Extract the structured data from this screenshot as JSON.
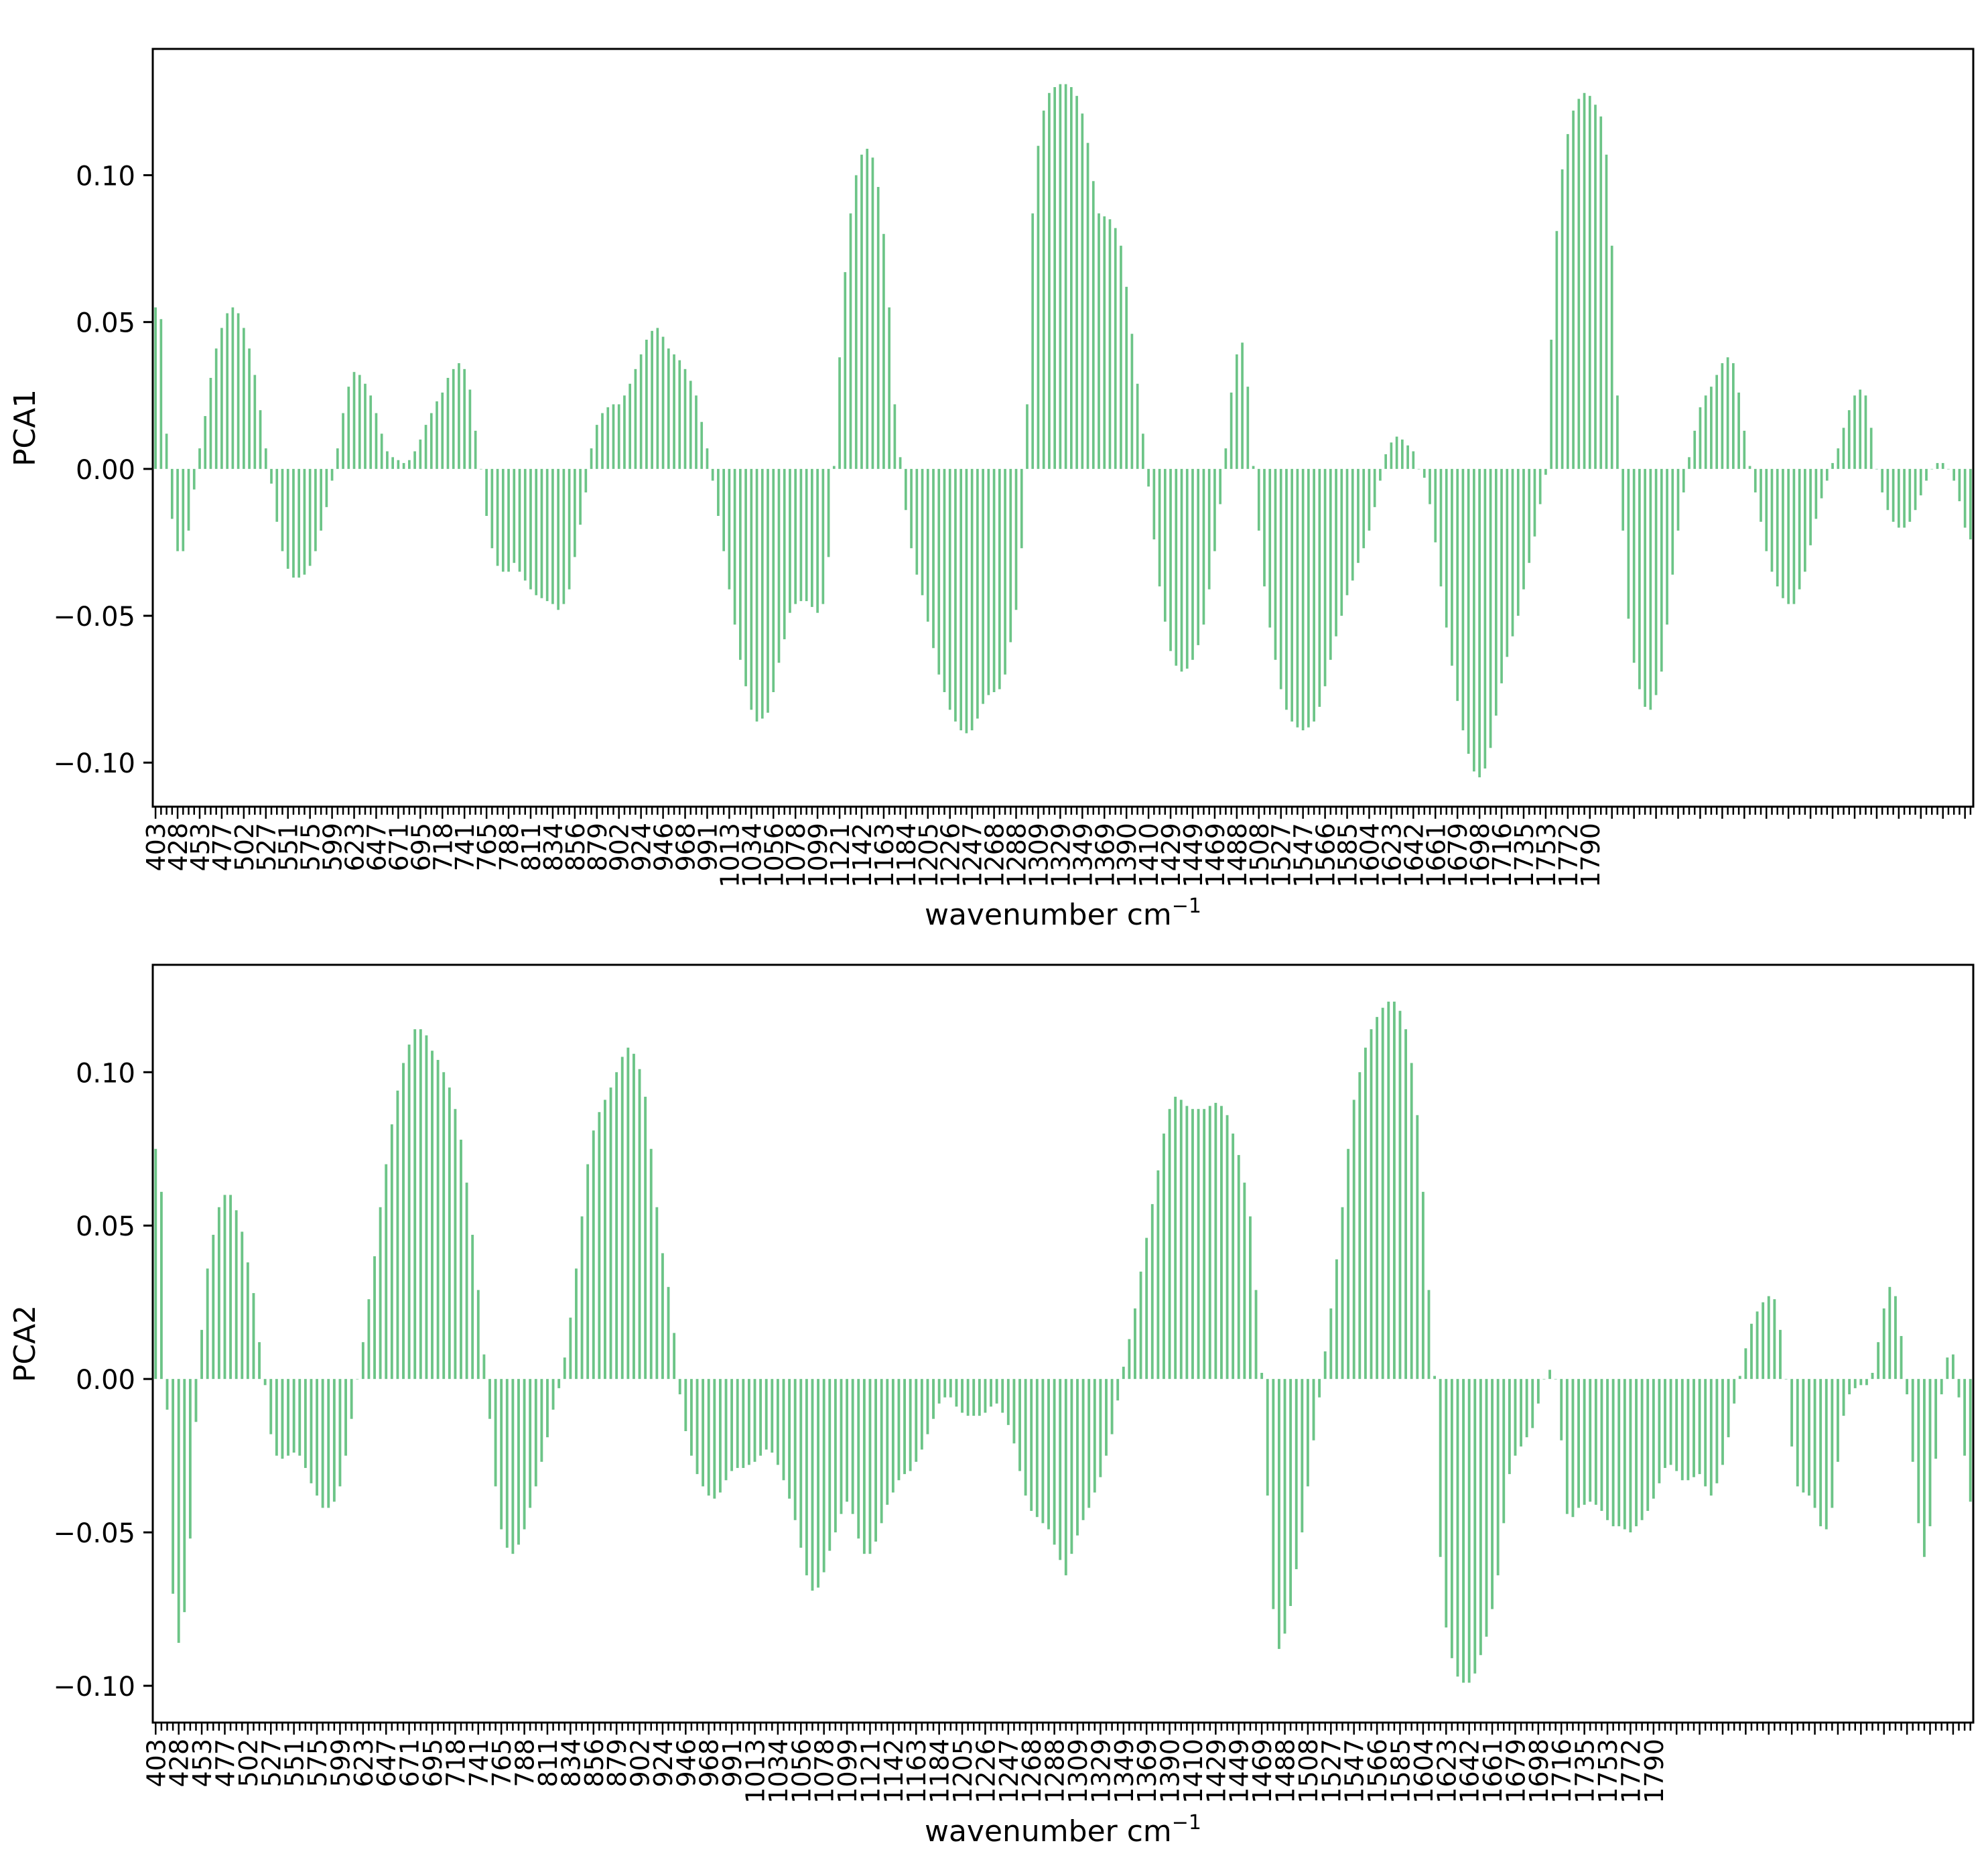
{
  "colors": {
    "bar": "#6cc487",
    "axes": "#000000",
    "background": "#ffffff"
  },
  "chart_data": [
    {
      "type": "bar",
      "panel": "top",
      "xlabel": "wavenumber cm",
      "xlabel_superscript": "−1",
      "ylabel": "PCA1",
      "ylim": [
        -0.115,
        0.143
      ],
      "yticks": [
        -0.1,
        -0.05,
        0.0,
        0.05,
        0.1
      ],
      "ytick_labels": [
        "−0.10",
        "−0.05",
        "0.00",
        "0.05",
        "0.10"
      ],
      "x_tick_labels": [
        "403",
        "428",
        "453",
        "477",
        "502",
        "527",
        "551",
        "575",
        "599",
        "623",
        "647",
        "671",
        "695",
        "718",
        "741",
        "765",
        "788",
        "811",
        "834",
        "856",
        "879",
        "902",
        "924",
        "946",
        "968",
        "991",
        "1013",
        "1034",
        "1056",
        "1078",
        "1099",
        "1121",
        "1142",
        "1163",
        "1184",
        "1205",
        "1226",
        "1247",
        "1268",
        "1288",
        "1309",
        "1329",
        "1349",
        "1369",
        "1390",
        "1410",
        "1429",
        "1449",
        "1469",
        "1488",
        "1508",
        "1527",
        "1547",
        "1566",
        "1585",
        "1604",
        "1623",
        "1642",
        "1661",
        "1679",
        "1698",
        "1716",
        "1735",
        "1753",
        "1772",
        "1790"
      ],
      "values": [
        0.055,
        0.051,
        0.012,
        -0.017,
        -0.028,
        -0.028,
        -0.021,
        -0.007,
        0.007,
        0.018,
        0.031,
        0.041,
        0.048,
        0.053,
        0.055,
        0.053,
        0.048,
        0.041,
        0.032,
        0.02,
        0.007,
        -0.005,
        -0.018,
        -0.028,
        -0.034,
        -0.037,
        -0.037,
        -0.036,
        -0.033,
        -0.028,
        -0.021,
        -0.013,
        -0.004,
        0.007,
        0.019,
        0.028,
        0.033,
        0.032,
        0.029,
        0.025,
        0.019,
        0.012,
        0.006,
        0.004,
        0.003,
        0.002,
        0.003,
        0.006,
        0.01,
        0.015,
        0.019,
        0.023,
        0.026,
        0.031,
        0.034,
        0.036,
        0.034,
        0.027,
        0.013,
        0.0,
        -0.016,
        -0.027,
        -0.033,
        -0.035,
        -0.035,
        -0.032,
        -0.035,
        -0.038,
        -0.041,
        -0.043,
        -0.044,
        -0.045,
        -0.046,
        -0.048,
        -0.046,
        -0.041,
        -0.03,
        -0.019,
        -0.008,
        0.007,
        0.015,
        0.019,
        0.021,
        0.022,
        0.022,
        0.025,
        0.029,
        0.034,
        0.039,
        0.044,
        0.047,
        0.048,
        0.045,
        0.041,
        0.039,
        0.037,
        0.034,
        0.03,
        0.025,
        0.016,
        0.007,
        -0.004,
        -0.016,
        -0.028,
        -0.041,
        -0.053,
        -0.065,
        -0.074,
        -0.082,
        -0.086,
        -0.085,
        -0.083,
        -0.076,
        -0.066,
        -0.058,
        -0.049,
        -0.046,
        -0.045,
        -0.045,
        -0.047,
        -0.049,
        -0.046,
        -0.03,
        0.001,
        0.038,
        0.067,
        0.087,
        0.1,
        0.107,
        0.109,
        0.106,
        0.096,
        0.08,
        0.055,
        0.022,
        0.004,
        -0.014,
        -0.027,
        -0.036,
        -0.043,
        -0.052,
        -0.061,
        -0.07,
        -0.076,
        -0.082,
        -0.086,
        -0.089,
        -0.09,
        -0.089,
        -0.085,
        -0.08,
        -0.077,
        -0.076,
        -0.075,
        -0.07,
        -0.059,
        -0.048,
        -0.027,
        0.022,
        0.087,
        0.11,
        0.122,
        0.128,
        0.13,
        0.131,
        0.131,
        0.13,
        0.127,
        0.121,
        0.111,
        0.098,
        0.087,
        0.086,
        0.085,
        0.082,
        0.076,
        0.062,
        0.046,
        0.029,
        0.012,
        -0.006,
        -0.024,
        -0.04,
        -0.052,
        -0.062,
        -0.067,
        -0.069,
        -0.068,
        -0.065,
        -0.06,
        -0.053,
        -0.041,
        -0.028,
        -0.012,
        0.007,
        0.026,
        0.039,
        0.043,
        0.028,
        0.001,
        -0.021,
        -0.04,
        -0.054,
        -0.065,
        -0.075,
        -0.082,
        -0.086,
        -0.088,
        -0.089,
        -0.088,
        -0.086,
        -0.081,
        -0.074,
        -0.065,
        -0.057,
        -0.05,
        -0.043,
        -0.038,
        -0.032,
        -0.027,
        -0.021,
        -0.013,
        -0.004,
        0.005,
        0.009,
        0.011,
        0.01,
        0.008,
        0.006,
        0.0,
        -0.003,
        -0.012,
        -0.025,
        -0.04,
        -0.054,
        -0.067,
        -0.079,
        -0.089,
        -0.097,
        -0.103,
        -0.105,
        -0.102,
        -0.095,
        -0.084,
        -0.073,
        -0.064,
        -0.057,
        -0.05,
        -0.041,
        -0.032,
        -0.023,
        -0.012,
        -0.002,
        0.044,
        0.081,
        0.102,
        0.114,
        0.122,
        0.126,
        0.128,
        0.127,
        0.124,
        0.12,
        0.107,
        0.076,
        0.025,
        -0.021,
        -0.051,
        -0.066,
        -0.075,
        -0.081,
        -0.082,
        -0.077,
        -0.069,
        -0.053,
        -0.036,
        -0.021,
        -0.008,
        0.004,
        0.013,
        0.021,
        0.025,
        0.028,
        0.032,
        0.036,
        0.038,
        0.036,
        0.026,
        0.013,
        0.001,
        -0.008,
        -0.018,
        -0.028,
        -0.035,
        -0.04,
        -0.044,
        -0.046,
        -0.046,
        -0.041,
        -0.035,
        -0.026,
        -0.017,
        -0.01,
        -0.004,
        0.002,
        0.007,
        0.014,
        0.02,
        0.025,
        0.027,
        0.025,
        0.014,
        0.0,
        -0.008,
        -0.014,
        -0.018,
        -0.02,
        -0.02,
        -0.018,
        -0.014,
        -0.009,
        -0.004,
        0.0,
        0.002,
        0.002,
        0.0,
        -0.004,
        -0.011,
        -0.02,
        -0.024
      ]
    },
    {
      "type": "bar",
      "panel": "bottom",
      "xlabel": "wavenumber cm",
      "xlabel_superscript": "−1",
      "ylabel": "PCA2",
      "ylim": [
        -0.112,
        0.135
      ],
      "yticks": [
        -0.1,
        -0.05,
        0.0,
        0.05,
        0.1
      ],
      "ytick_labels": [
        "−0.10",
        "−0.05",
        "0.00",
        "0.05",
        "0.10"
      ],
      "x_tick_labels": [
        "403",
        "428",
        "453",
        "477",
        "502",
        "527",
        "551",
        "575",
        "599",
        "623",
        "647",
        "671",
        "695",
        "718",
        "741",
        "765",
        "788",
        "811",
        "834",
        "856",
        "879",
        "902",
        "924",
        "946",
        "968",
        "991",
        "1013",
        "1034",
        "1056",
        "1078",
        "1099",
        "1121",
        "1142",
        "1163",
        "1184",
        "1205",
        "1226",
        "1247",
        "1268",
        "1288",
        "1309",
        "1329",
        "1349",
        "1369",
        "1390",
        "1410",
        "1429",
        "1449",
        "1469",
        "1488",
        "1508",
        "1527",
        "1547",
        "1566",
        "1585",
        "1604",
        "1623",
        "1642",
        "1661",
        "1679",
        "1698",
        "1716",
        "1735",
        "1753",
        "1772",
        "1790"
      ],
      "values": [
        0.075,
        0.061,
        -0.01,
        -0.07,
        -0.086,
        -0.076,
        -0.052,
        -0.014,
        0.016,
        0.036,
        0.047,
        0.056,
        0.06,
        0.06,
        0.055,
        0.048,
        0.038,
        0.028,
        0.012,
        -0.002,
        -0.018,
        -0.025,
        -0.026,
        -0.025,
        -0.024,
        -0.025,
        -0.029,
        -0.034,
        -0.038,
        -0.042,
        -0.042,
        -0.04,
        -0.035,
        -0.025,
        -0.013,
        0.0,
        0.012,
        0.026,
        0.04,
        0.056,
        0.07,
        0.083,
        0.094,
        0.103,
        0.109,
        0.114,
        0.114,
        0.112,
        0.107,
        0.104,
        0.1,
        0.095,
        0.088,
        0.078,
        0.064,
        0.047,
        0.029,
        0.008,
        -0.013,
        -0.035,
        -0.049,
        -0.055,
        -0.057,
        -0.054,
        -0.049,
        -0.042,
        -0.035,
        -0.027,
        -0.019,
        -0.01,
        -0.003,
        0.007,
        0.02,
        0.036,
        0.053,
        0.07,
        0.081,
        0.087,
        0.091,
        0.095,
        0.1,
        0.105,
        0.108,
        0.106,
        0.101,
        0.092,
        0.075,
        0.056,
        0.041,
        0.03,
        0.015,
        -0.005,
        -0.017,
        -0.025,
        -0.031,
        -0.035,
        -0.038,
        -0.039,
        -0.037,
        -0.033,
        -0.03,
        -0.029,
        -0.029,
        -0.028,
        -0.027,
        -0.025,
        -0.023,
        -0.024,
        -0.028,
        -0.033,
        -0.039,
        -0.046,
        -0.055,
        -0.064,
        -0.069,
        -0.068,
        -0.063,
        -0.056,
        -0.05,
        -0.044,
        -0.04,
        -0.044,
        -0.052,
        -0.057,
        -0.057,
        -0.053,
        -0.047,
        -0.041,
        -0.037,
        -0.033,
        -0.031,
        -0.03,
        -0.027,
        -0.023,
        -0.018,
        -0.013,
        -0.008,
        -0.006,
        -0.006,
        -0.009,
        -0.011,
        -0.012,
        -0.012,
        -0.012,
        -0.011,
        -0.009,
        -0.008,
        -0.011,
        -0.015,
        -0.021,
        -0.03,
        -0.038,
        -0.043,
        -0.045,
        -0.047,
        -0.049,
        -0.054,
        -0.059,
        -0.064,
        -0.057,
        -0.051,
        -0.046,
        -0.042,
        -0.037,
        -0.032,
        -0.025,
        -0.018,
        -0.007,
        0.004,
        0.013,
        0.023,
        0.035,
        0.046,
        0.057,
        0.068,
        0.08,
        0.088,
        0.092,
        0.091,
        0.089,
        0.088,
        0.088,
        0.088,
        0.089,
        0.09,
        0.089,
        0.086,
        0.08,
        0.073,
        0.064,
        0.053,
        0.029,
        0.002,
        -0.038,
        -0.075,
        -0.088,
        -0.083,
        -0.074,
        -0.062,
        -0.05,
        -0.035,
        -0.02,
        -0.006,
        0.009,
        0.023,
        0.039,
        0.056,
        0.075,
        0.091,
        0.1,
        0.108,
        0.114,
        0.118,
        0.121,
        0.123,
        0.123,
        0.12,
        0.114,
        0.103,
        0.086,
        0.061,
        0.029,
        0.001,
        -0.058,
        -0.081,
        -0.091,
        -0.097,
        -0.099,
        -0.099,
        -0.096,
        -0.09,
        -0.084,
        -0.075,
        -0.064,
        -0.047,
        -0.031,
        -0.025,
        -0.022,
        -0.019,
        -0.016,
        -0.008,
        0.0,
        0.003,
        0.0,
        -0.02,
        -0.044,
        -0.045,
        -0.042,
        -0.041,
        -0.04,
        -0.041,
        -0.043,
        -0.046,
        -0.048,
        -0.048,
        -0.049,
        -0.05,
        -0.048,
        -0.046,
        -0.043,
        -0.039,
        -0.034,
        -0.029,
        -0.028,
        -0.03,
        -0.033,
        -0.033,
        -0.032,
        -0.031,
        -0.035,
        -0.038,
        -0.034,
        -0.028,
        -0.019,
        -0.008,
        0.001,
        0.01,
        0.018,
        0.022,
        0.025,
        0.027,
        0.026,
        0.016,
        0.0,
        -0.022,
        -0.035,
        -0.037,
        -0.038,
        -0.042,
        -0.048,
        -0.049,
        -0.042,
        -0.027,
        -0.012,
        -0.005,
        -0.003,
        -0.002,
        -0.002,
        0.002,
        0.012,
        0.023,
        0.03,
        0.027,
        0.014,
        -0.005,
        -0.027,
        -0.047,
        -0.058,
        -0.048,
        -0.026,
        -0.005,
        0.007,
        0.008,
        -0.006,
        -0.025,
        -0.04
      ]
    }
  ]
}
